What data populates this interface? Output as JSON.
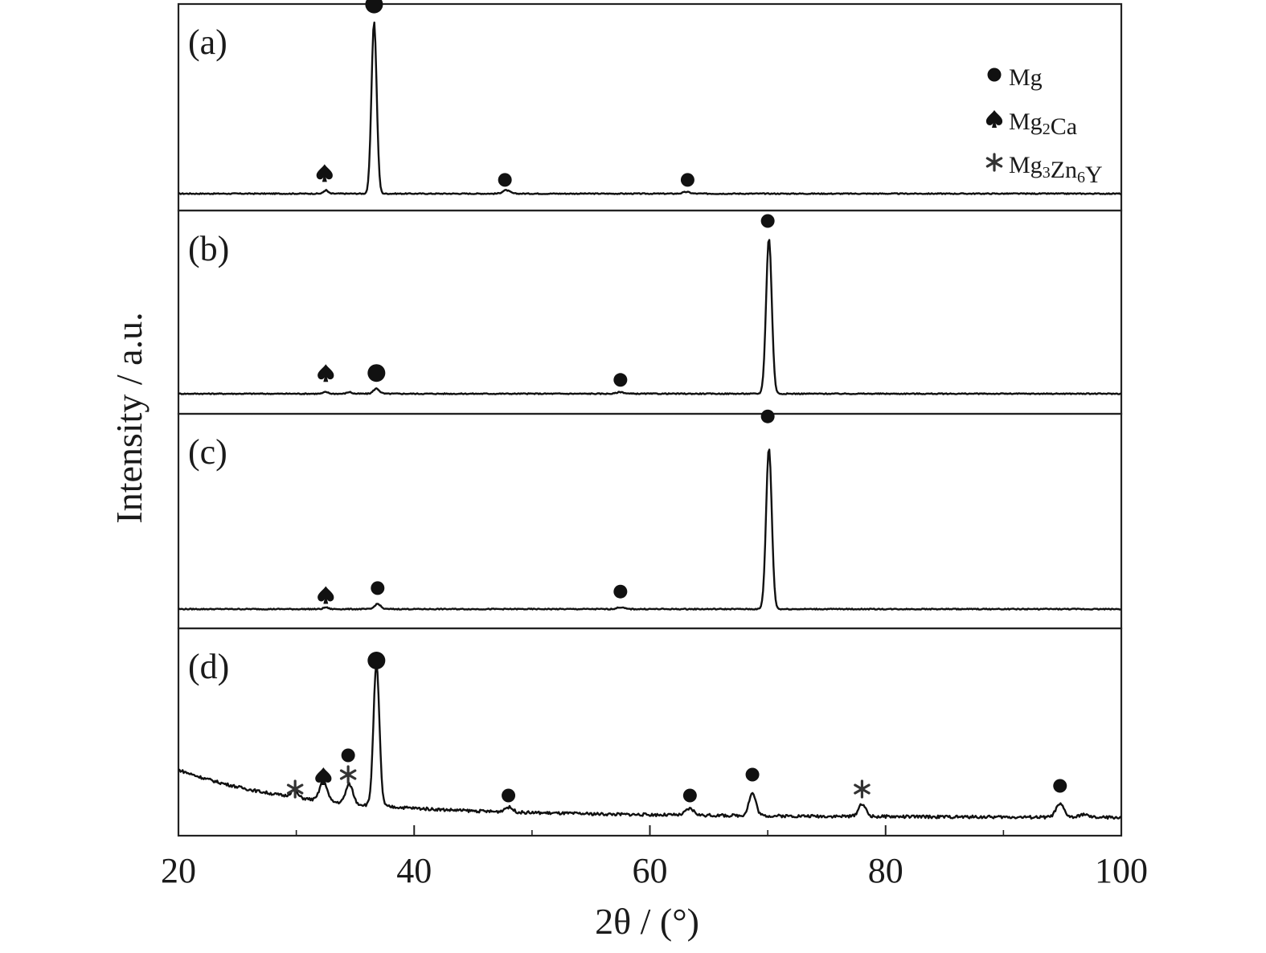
{
  "chart_data": {
    "type": "line",
    "xlabel": "2θ / (°)",
    "ylabel": "Intensity / a.u.",
    "xlim": [
      20,
      100
    ],
    "xticks": [
      "20",
      "40",
      "60",
      "80",
      "100"
    ],
    "grid": false,
    "legend_position": "top-right (panel a)",
    "legend": [
      {
        "marker": "circle",
        "base": "Mg",
        "sub1": "",
        "mid": "",
        "sub2": "",
        "tail": ""
      },
      {
        "marker": "spade",
        "base": "Mg",
        "sub1": "2",
        "mid": "Ca",
        "sub2": "",
        "tail": ""
      },
      {
        "marker": "asterisk",
        "base": "Mg",
        "sub1": "3",
        "mid": "Zn",
        "sub2": "6",
        "tail": "Y"
      }
    ],
    "panels": [
      {
        "label": "(a)",
        "baseline_slope": 0,
        "peaks": [
          {
            "x": 32.5,
            "h": 0.02,
            "w": 0.18,
            "phase": "Mg2Ca"
          },
          {
            "x": 36.6,
            "h": 1.0,
            "w": 0.22,
            "phase": "Mg"
          },
          {
            "x": 47.8,
            "h": 0.02,
            "w": 0.3,
            "phase": "Mg"
          },
          {
            "x": 63.1,
            "h": 0.01,
            "w": 0.3,
            "phase": "Mg"
          }
        ],
        "markers": [
          {
            "x": 32.4,
            "h": 0.12,
            "type": "spade"
          },
          {
            "x": 36.6,
            "h": 1.1,
            "type": "circle-big"
          },
          {
            "x": 47.7,
            "h": 0.08,
            "type": "circle"
          },
          {
            "x": 63.2,
            "h": 0.08,
            "type": "circle"
          }
        ]
      },
      {
        "label": "(b)",
        "baseline_slope": 0,
        "peaks": [
          {
            "x": 32.5,
            "h": 0.01,
            "w": 0.2,
            "phase": "Mg2Ca"
          },
          {
            "x": 34.5,
            "h": 0.01,
            "w": 0.2,
            "phase": ""
          },
          {
            "x": 36.8,
            "h": 0.03,
            "w": 0.25,
            "phase": "Mg"
          },
          {
            "x": 57.5,
            "h": 0.01,
            "w": 0.3,
            "phase": "Mg"
          },
          {
            "x": 70.1,
            "h": 0.9,
            "w": 0.24,
            "phase": "Mg"
          }
        ],
        "markers": [
          {
            "x": 32.5,
            "h": 0.12,
            "type": "spade"
          },
          {
            "x": 36.8,
            "h": 0.12,
            "type": "circle-big"
          },
          {
            "x": 57.5,
            "h": 0.08,
            "type": "circle"
          },
          {
            "x": 70.0,
            "h": 1.0,
            "type": "circle"
          }
        ]
      },
      {
        "label": "(c)",
        "baseline_slope": 0,
        "peaks": [
          {
            "x": 32.5,
            "h": 0.01,
            "w": 0.2,
            "phase": "Mg2Ca"
          },
          {
            "x": 36.9,
            "h": 0.03,
            "w": 0.25,
            "phase": "Mg"
          },
          {
            "x": 57.5,
            "h": 0.01,
            "w": 0.3,
            "phase": "Mg"
          },
          {
            "x": 70.1,
            "h": 0.92,
            "w": 0.24,
            "phase": "Mg"
          }
        ],
        "markers": [
          {
            "x": 32.5,
            "h": 0.08,
            "type": "spade"
          },
          {
            "x": 36.9,
            "h": 0.12,
            "type": "circle"
          },
          {
            "x": 57.5,
            "h": 0.1,
            "type": "circle"
          },
          {
            "x": 70.0,
            "h": 1.1,
            "type": "circle"
          }
        ]
      },
      {
        "label": "(d)",
        "baseline_slope": 1,
        "peaks": [
          {
            "x": 29.8,
            "h": 0.04,
            "w": 0.3,
            "phase": "Mg3Zn6Y"
          },
          {
            "x": 32.3,
            "h": 0.13,
            "w": 0.3,
            "phase": "Mg2Ca"
          },
          {
            "x": 34.5,
            "h": 0.12,
            "w": 0.3,
            "phase": "Mg"
          },
          {
            "x": 36.8,
            "h": 0.88,
            "w": 0.25,
            "phase": "Mg"
          },
          {
            "x": 48.0,
            "h": 0.03,
            "w": 0.35,
            "phase": "Mg"
          },
          {
            "x": 63.4,
            "h": 0.04,
            "w": 0.35,
            "phase": "Mg"
          },
          {
            "x": 68.7,
            "h": 0.14,
            "w": 0.3,
            "phase": "Mg"
          },
          {
            "x": 78.0,
            "h": 0.08,
            "w": 0.3,
            "phase": "Mg3Zn6Y"
          },
          {
            "x": 94.8,
            "h": 0.08,
            "w": 0.35,
            "phase": "Mg"
          },
          {
            "x": 96.8,
            "h": 0.02,
            "w": 0.3,
            "phase": ""
          }
        ],
        "markers": [
          {
            "x": 29.9,
            "h": 0.19,
            "type": "asterisk"
          },
          {
            "x": 32.3,
            "h": 0.27,
            "type": "spade"
          },
          {
            "x": 34.4,
            "h": 0.4,
            "type": "circle"
          },
          {
            "x": 34.4,
            "h": 0.28,
            "type": "asterisk"
          },
          {
            "x": 36.8,
            "h": 0.99,
            "type": "circle-big"
          },
          {
            "x": 48.0,
            "h": 0.15,
            "type": "circle"
          },
          {
            "x": 63.4,
            "h": 0.15,
            "type": "circle"
          },
          {
            "x": 68.7,
            "h": 0.28,
            "type": "circle"
          },
          {
            "x": 78.0,
            "h": 0.19,
            "type": "asterisk"
          },
          {
            "x": 94.8,
            "h": 0.21,
            "type": "circle"
          }
        ]
      }
    ]
  }
}
